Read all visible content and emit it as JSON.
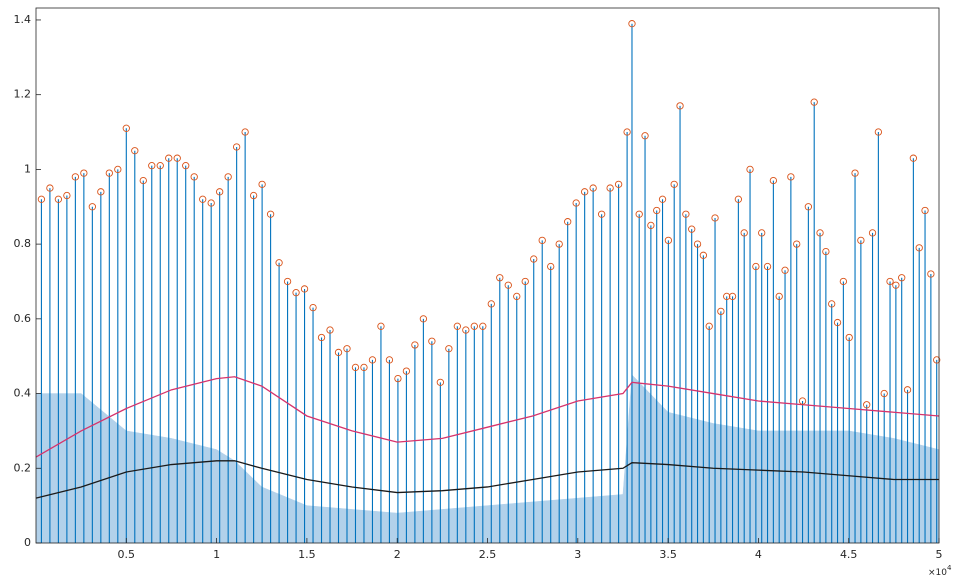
{
  "chart_data": {
    "type": "peaks",
    "xlim": [
      0,
      50000
    ],
    "ylim": [
      0,
      1.432
    ],
    "xticks": [
      {
        "value": 5000,
        "label": "0.5"
      },
      {
        "value": 10000,
        "label": "1"
      },
      {
        "value": 15000,
        "label": "1.5"
      },
      {
        "value": 20000,
        "label": "2"
      },
      {
        "value": 25000,
        "label": "2.5"
      },
      {
        "value": 30000,
        "label": "3"
      },
      {
        "value": 35000,
        "label": "3.5"
      },
      {
        "value": 40000,
        "label": "4"
      },
      {
        "value": 45000,
        "label": "4.5"
      },
      {
        "value": 50000,
        "label": "5"
      }
    ],
    "yticks": [
      0,
      0.2,
      0.4,
      0.6,
      0.8,
      1,
      1.2,
      1.4
    ],
    "x_multiplier": "×10",
    "x_multiplier_exponent": "4",
    "peaks": {
      "color": "#0072bd",
      "marker_color": "#d95319",
      "x": [
        300,
        770,
        1240,
        1710,
        2180,
        2650,
        3120,
        3590,
        4060,
        4530,
        5000,
        5470,
        5940,
        6410,
        6880,
        7350,
        7820,
        8290,
        8760,
        9230,
        9700,
        10170,
        10640,
        11110,
        11580,
        12050,
        12520,
        12990,
        13460,
        13930,
        14400,
        14870,
        15340,
        15810,
        16280,
        16750,
        17220,
        17690,
        18160,
        18630,
        19100,
        19570,
        20040,
        20510,
        20980,
        21450,
        21920,
        22390,
        22860,
        23330,
        23800,
        24270,
        24740,
        25210,
        25680,
        26150,
        26620,
        27090,
        27560,
        28030,
        28500,
        28970,
        29440,
        29910,
        30380,
        30850,
        31320,
        31790,
        32260,
        32730,
        33000,
        33400,
        33723,
        34046,
        34369,
        34692,
        35015,
        35338,
        35661,
        35984,
        36307,
        36630,
        36953,
        37276,
        37599,
        37922,
        38245,
        38568,
        38891,
        39214,
        39537,
        39860,
        40183,
        40506,
        40829,
        41152,
        41475,
        41798,
        42121,
        42444,
        42767,
        43090,
        43413,
        43736,
        44059,
        44382,
        44705,
        45028,
        45351,
        45674,
        45997,
        46320,
        46643,
        46966,
        47289,
        47612,
        47935,
        48258,
        48581,
        48904,
        49227,
        49550,
        49873
      ],
      "values": [
        0.92,
        0.95,
        0.92,
        0.93,
        0.98,
        0.99,
        0.9,
        0.94,
        0.99,
        1.0,
        1.11,
        1.05,
        0.97,
        1.01,
        1.01,
        1.03,
        1.03,
        1.01,
        0.98,
        0.92,
        0.91,
        0.94,
        0.98,
        1.06,
        1.1,
        0.93,
        0.96,
        0.88,
        0.75,
        0.7,
        0.67,
        0.68,
        0.63,
        0.55,
        0.57,
        0.51,
        0.52,
        0.47,
        0.47,
        0.49,
        0.58,
        0.49,
        0.44,
        0.46,
        0.53,
        0.6,
        0.54,
        0.43,
        0.52,
        0.58,
        0.57,
        0.58,
        0.58,
        0.64,
        0.71,
        0.69,
        0.66,
        0.7,
        0.76,
        0.81,
        0.74,
        0.8,
        0.86,
        0.91,
        0.94,
        0.95,
        0.88,
        0.95,
        0.96,
        1.1,
        1.39,
        0.88,
        1.09,
        0.85,
        0.89,
        0.92,
        0.81,
        0.96,
        1.17,
        0.88,
        0.84,
        0.8,
        0.77,
        0.58,
        0.87,
        0.62,
        0.66,
        0.66,
        0.92,
        0.83,
        1.0,
        0.74,
        0.83,
        0.74,
        0.97,
        0.66,
        0.73,
        0.98,
        0.8,
        0.38,
        0.9,
        1.18,
        0.83,
        0.78,
        0.64,
        0.59,
        0.7,
        0.55,
        0.99,
        0.81,
        0.37,
        0.83,
        1.1,
        0.4,
        0.7,
        0.69,
        0.71,
        0.41,
        1.03,
        0.79,
        0.89,
        0.72,
        0.49
      ]
    },
    "envelopes": {
      "x": [
        0,
        2500,
        5000,
        7500,
        10000,
        11000,
        12500,
        15000,
        17500,
        20000,
        22500,
        25000,
        27500,
        30000,
        32500,
        33000,
        35000,
        37500,
        40000,
        42500,
        45000,
        47500,
        50000
      ],
      "series": [
        {
          "color": "#9fc6e6",
          "fill": true,
          "values": [
            0.4,
            0.4,
            0.3,
            0.28,
            0.25,
            0.22,
            0.15,
            0.1,
            0.09,
            0.08,
            0.09,
            0.1,
            0.11,
            0.12,
            0.13,
            0.45,
            0.35,
            0.32,
            0.3,
            0.3,
            0.3,
            0.28,
            0.25
          ]
        },
        {
          "color": "#d6336c",
          "fill": false,
          "values": [
            0.23,
            0.3,
            0.36,
            0.41,
            0.44,
            0.445,
            0.42,
            0.34,
            0.3,
            0.27,
            0.28,
            0.31,
            0.34,
            0.38,
            0.4,
            0.43,
            0.42,
            0.4,
            0.38,
            0.37,
            0.36,
            0.35,
            0.34
          ]
        },
        {
          "color": "#1a1a1a",
          "fill": false,
          "values": [
            0.12,
            0.15,
            0.19,
            0.21,
            0.22,
            0.22,
            0.2,
            0.17,
            0.15,
            0.135,
            0.14,
            0.15,
            0.17,
            0.19,
            0.2,
            0.215,
            0.21,
            0.2,
            0.195,
            0.19,
            0.18,
            0.17,
            0.17
          ]
        }
      ]
    }
  }
}
